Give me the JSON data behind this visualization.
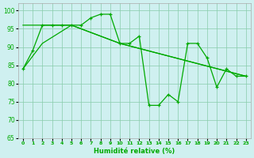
{
  "xlabel": "Humidité relative (%)",
  "background_color": "#cff0f0",
  "grid_color": "#88ccaa",
  "line_color": "#00aa00",
  "ylim": [
    65,
    102
  ],
  "xlim": [
    -0.5,
    23.5
  ],
  "yticks": [
    65,
    70,
    75,
    80,
    85,
    90,
    95,
    100
  ],
  "xticks": [
    0,
    1,
    2,
    3,
    4,
    5,
    6,
    7,
    8,
    9,
    10,
    11,
    12,
    13,
    14,
    15,
    16,
    17,
    18,
    19,
    20,
    21,
    22,
    23
  ],
  "series_jagged": {
    "x": [
      0,
      1,
      2,
      3,
      4,
      5,
      6,
      7,
      8,
      9,
      10,
      11,
      12,
      13,
      14,
      15,
      16,
      17,
      18,
      19,
      20,
      21,
      22,
      23
    ],
    "y": [
      84,
      89,
      96,
      96,
      96,
      96,
      96,
      98,
      99,
      99,
      91,
      91,
      93,
      74,
      74,
      77,
      75,
      91,
      91,
      87,
      79,
      84,
      82,
      82
    ]
  },
  "trend_upper": {
    "x": [
      0,
      2,
      5,
      10,
      23
    ],
    "y": [
      96,
      96,
      96,
      91,
      82
    ]
  },
  "trend_lower": {
    "x": [
      0,
      2,
      5,
      10,
      23
    ],
    "y": [
      84,
      91,
      96,
      91,
      82
    ]
  }
}
